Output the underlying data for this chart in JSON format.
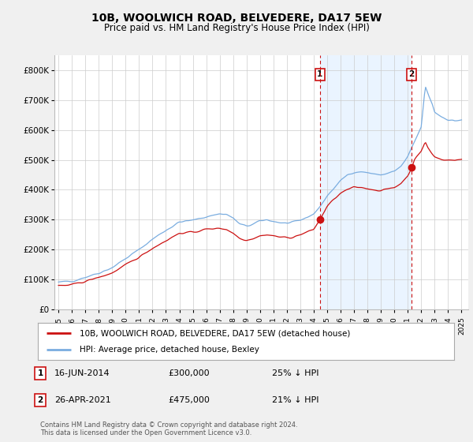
{
  "title": "10B, WOOLWICH ROAD, BELVEDERE, DA17 5EW",
  "subtitle": "Price paid vs. HM Land Registry's House Price Index (HPI)",
  "ytick_values": [
    0,
    100000,
    200000,
    300000,
    400000,
    500000,
    600000,
    700000,
    800000
  ],
  "ylim": [
    0,
    850000
  ],
  "sale1_x": 2014.46,
  "sale1_y": 300000,
  "sale1_date": "16-JUN-2014",
  "sale1_price": 300000,
  "sale1_note": "25% ↓ HPI",
  "sale2_x": 2021.29,
  "sale2_y": 475000,
  "sale2_date": "26-APR-2021",
  "sale2_price": 475000,
  "sale2_note": "21% ↓ HPI",
  "hpi_color": "#7aade0",
  "price_color": "#cc1111",
  "shade_color": "#ddeeff",
  "legend1": "10B, WOOLWICH ROAD, BELVEDERE, DA17 5EW (detached house)",
  "legend2": "HPI: Average price, detached house, Bexley",
  "footnote1": "Contains HM Land Registry data © Crown copyright and database right 2024.",
  "footnote2": "This data is licensed under the Open Government Licence v3.0.",
  "background_color": "#f0f0f0",
  "plot_bg_color": "#ffffff",
  "xlim_left": 1994.7,
  "xlim_right": 2025.5
}
